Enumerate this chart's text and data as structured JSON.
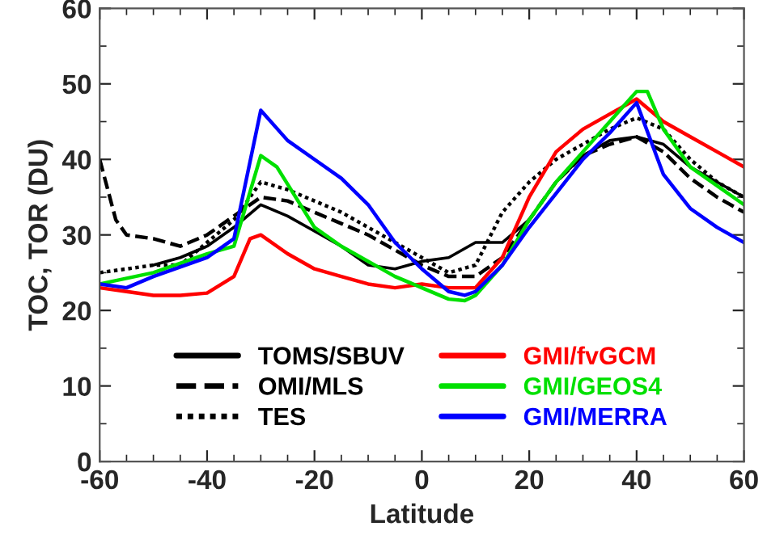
{
  "chart_data": {
    "type": "line",
    "xlabel": "Latitude",
    "ylabel": "TOC, TOR (DU)",
    "xlim": [
      -60,
      60
    ],
    "ylim": [
      0,
      60
    ],
    "xticks": [
      -60,
      -40,
      -20,
      0,
      20,
      40,
      60
    ],
    "yticks": [
      0,
      10,
      20,
      30,
      40,
      50,
      60
    ],
    "grid": false,
    "legend": "bottom",
    "marker": "none",
    "series": [
      {
        "name": "TOMS/SBUV",
        "color": "#000000",
        "line_style": "solid",
        "x": [
          -50,
          -45,
          -40,
          -35,
          -30,
          -25,
          -20,
          -15,
          -10,
          -5,
          0,
          5,
          10,
          15,
          20,
          25,
          30,
          35,
          40,
          45,
          50,
          55,
          60
        ],
        "values": [
          26,
          27,
          28.5,
          31,
          34,
          32.5,
          30.5,
          28.5,
          26,
          25.5,
          26.5,
          27,
          29,
          29,
          32,
          37,
          40.5,
          42.5,
          43,
          42,
          39,
          37,
          35
        ]
      },
      {
        "name": "OMI/MLS",
        "color": "#000000",
        "line_style": "dashed",
        "x": [
          -60,
          -57,
          -55,
          -50,
          -45,
          -40,
          -35,
          -30,
          -25,
          -20,
          -15,
          -10,
          -5,
          0,
          5,
          10,
          15,
          20,
          25,
          30,
          35,
          40,
          45,
          50,
          55,
          60
        ],
        "values": [
          40,
          32,
          30,
          29.5,
          28.5,
          30,
          32.5,
          35,
          34.5,
          33,
          31.5,
          30,
          28,
          26,
          24.5,
          24.5,
          27,
          32,
          37,
          40.5,
          42,
          43,
          41,
          37.5,
          35,
          33
        ]
      },
      {
        "name": "TES",
        "color": "#000000",
        "line_style": "dotted",
        "x": [
          -60,
          -50,
          -45,
          -40,
          -35,
          -30,
          -25,
          -20,
          -15,
          -10,
          -5,
          0,
          5,
          10,
          15,
          20,
          25,
          30,
          35,
          40,
          45,
          50,
          55,
          60
        ],
        "values": [
          25,
          26,
          26,
          29,
          32,
          37,
          36,
          34.5,
          33,
          31,
          29,
          27,
          25,
          26,
          33,
          37,
          40,
          42,
          44,
          45.5,
          44,
          40,
          37,
          35
        ]
      },
      {
        "name": "GMI/fvGCM",
        "color": "#ff0000",
        "line_style": "solid",
        "x": [
          -60,
          -55,
          -50,
          -45,
          -40,
          -35,
          -32,
          -30,
          -25,
          -20,
          -15,
          -10,
          -5,
          0,
          5,
          10,
          15,
          20,
          25,
          30,
          35,
          40,
          45,
          50,
          55,
          60
        ],
        "values": [
          23,
          22.5,
          22,
          22,
          22.3,
          24.5,
          29.5,
          30,
          27.5,
          25.5,
          24.5,
          23.5,
          23,
          23.5,
          23,
          23,
          27,
          35,
          41,
          44,
          46,
          48,
          45,
          43,
          41,
          39
        ]
      },
      {
        "name": "GMI/GEOS4",
        "color": "#00e000",
        "line_style": "solid",
        "x": [
          -60,
          -50,
          -40,
          -35,
          -30,
          -27,
          -20,
          -15,
          -10,
          -5,
          0,
          5,
          8,
          10,
          15,
          20,
          25,
          30,
          35,
          40,
          42,
          45,
          50,
          55,
          60
        ],
        "values": [
          23.5,
          25,
          27.5,
          28.5,
          40.5,
          39,
          31,
          28.5,
          26.5,
          24.5,
          23,
          21.5,
          21.3,
          22,
          26,
          32,
          37,
          41,
          45,
          49,
          49,
          44,
          39,
          36.5,
          34
        ]
      },
      {
        "name": "GMI/MERRA",
        "color": "#0000ff",
        "line_style": "solid",
        "x": [
          -60,
          -55,
          -50,
          -40,
          -35,
          -30,
          -25,
          -20,
          -15,
          -10,
          -5,
          0,
          5,
          8,
          10,
          15,
          20,
          25,
          30,
          35,
          40,
          45,
          50,
          55,
          60
        ],
        "values": [
          23.5,
          23,
          24.5,
          27,
          29.5,
          46.5,
          42.5,
          40,
          37.5,
          34,
          29,
          25.5,
          22.5,
          22,
          22.5,
          26,
          31,
          35.5,
          40,
          43.5,
          47.5,
          38,
          33.5,
          31,
          29
        ]
      }
    ]
  }
}
